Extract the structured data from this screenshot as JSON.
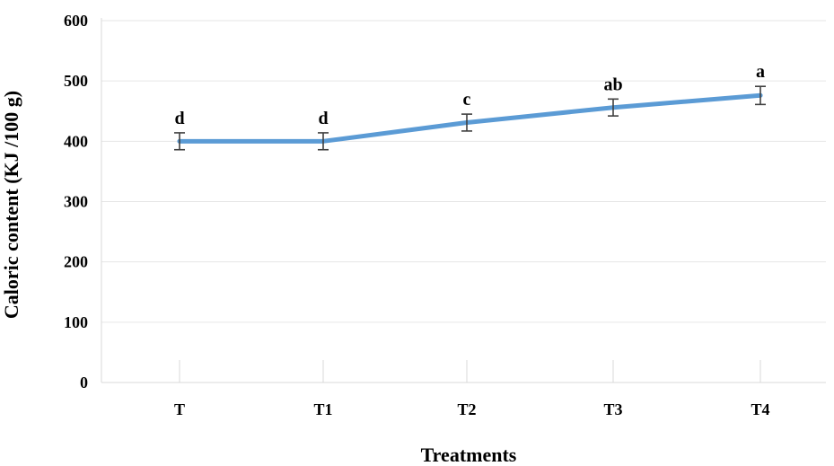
{
  "chart_data": {
    "type": "line",
    "title": "",
    "xlabel": "Treatments",
    "ylabel": "Caloric content (KJ /100 g)",
    "ylim": [
      0,
      600
    ],
    "yticks": [
      0,
      100,
      200,
      300,
      400,
      500,
      600
    ],
    "grid": true,
    "categories": [
      "T",
      "T1",
      "T2",
      "T3",
      "T4"
    ],
    "series": [
      {
        "values": [
          400,
          400,
          431,
          456,
          476
        ],
        "error": [
          14,
          14,
          14,
          14,
          15
        ],
        "significance": [
          "d",
          "d",
          "c",
          "ab",
          "a"
        ]
      }
    ],
    "line_color": "#5B9BD5",
    "error_color": "#404040"
  }
}
